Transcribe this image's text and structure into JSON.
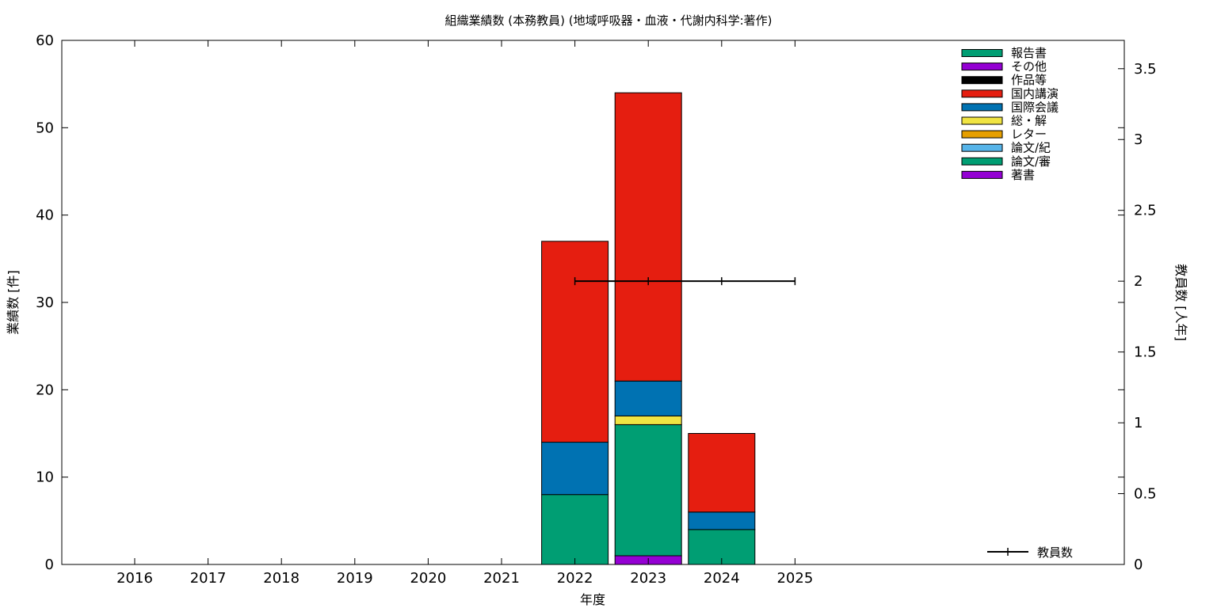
{
  "chart_data": {
    "type": "bar",
    "stacked": true,
    "title": "組織業績数 (本務教員) (地域呼吸器・血液・代謝内科学:著作)",
    "xlabel": "年度",
    "ylabel": "業績数 [件]",
    "y2label": "教員数 [人年]",
    "categories": [
      "2016",
      "2017",
      "2018",
      "2019",
      "2020",
      "2021",
      "2022",
      "2023",
      "2024",
      "2025"
    ],
    "ylim": [
      0,
      60
    ],
    "yticks": [
      "0",
      "10",
      "20",
      "30",
      "40",
      "50",
      "60"
    ],
    "y2lim": [
      0,
      3.7
    ],
    "y2ticks": [
      "0",
      "0.5",
      "1",
      "1.5",
      "2",
      "2.5",
      "3",
      "3.5"
    ],
    "series": [
      {
        "name": "著書",
        "color": "#9400d3",
        "values": [
          0,
          0,
          0,
          0,
          0,
          0,
          0,
          1,
          0,
          0
        ]
      },
      {
        "name": "論文/審",
        "color": "#009e73",
        "values": [
          0,
          0,
          0,
          0,
          0,
          0,
          8,
          15,
          4,
          0
        ]
      },
      {
        "name": "論文/紀",
        "color": "#56b4e9",
        "values": [
          0,
          0,
          0,
          0,
          0,
          0,
          0,
          0,
          0,
          0
        ]
      },
      {
        "name": "レター",
        "color": "#e69f00",
        "values": [
          0,
          0,
          0,
          0,
          0,
          0,
          0,
          0,
          0,
          0
        ]
      },
      {
        "name": "総・解",
        "color": "#f0e442",
        "values": [
          0,
          0,
          0,
          0,
          0,
          0,
          0,
          1,
          0,
          0
        ]
      },
      {
        "name": "国際会議",
        "color": "#0072b2",
        "values": [
          0,
          0,
          0,
          0,
          0,
          0,
          6,
          4,
          2,
          0
        ]
      },
      {
        "name": "国内講演",
        "color": "#e51e10",
        "values": [
          0,
          0,
          0,
          0,
          0,
          0,
          23,
          33,
          9,
          0
        ]
      },
      {
        "name": "作品等",
        "color": "#000000",
        "values": [
          0,
          0,
          0,
          0,
          0,
          0,
          0,
          0,
          0,
          0
        ]
      },
      {
        "name": "その他",
        "color": "#9400d3",
        "values": [
          0,
          0,
          0,
          0,
          0,
          0,
          0,
          0,
          0,
          0
        ]
      },
      {
        "name": "報告書",
        "color": "#009e73",
        "values": [
          0,
          0,
          0,
          0,
          0,
          0,
          0,
          0,
          0,
          0
        ]
      }
    ],
    "line_series": {
      "name": "教員数",
      "axis": "y2",
      "color": "#000000",
      "x": [
        "2022",
        "2023",
        "2024",
        "2025"
      ],
      "values": [
        2,
        2,
        2,
        2
      ]
    },
    "legend_order": [
      "報告書",
      "その他",
      "作品等",
      "国内講演",
      "国際会議",
      "総・解",
      "レター",
      "論文/紀",
      "論文/審",
      "著書"
    ],
    "legend_position": "top-right",
    "line_legend_position": "bottom-right",
    "grid": false
  }
}
